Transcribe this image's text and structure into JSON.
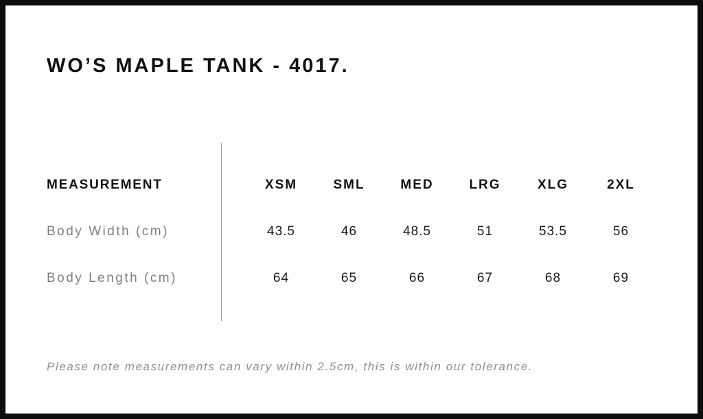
{
  "page": {
    "title": "WO’S MAPLE TANK - 4017.",
    "footnote": "Please note measurements can vary within 2.5cm, this is within our tolerance."
  },
  "size_chart": {
    "label_header": "MEASUREMENT",
    "size_headers": [
      "XSM",
      "SML",
      "MED",
      "LRG",
      "XLG",
      "2XL"
    ],
    "rows": [
      {
        "label": "Body Width (cm)",
        "values": [
          "43.5",
          "46",
          "48.5",
          "51",
          "53.5",
          "56"
        ]
      },
      {
        "label": "Body Length (cm)",
        "values": [
          "64",
          "65",
          "66",
          "67",
          "68",
          "69"
        ]
      }
    ]
  },
  "colors": {
    "background": "#ffffff",
    "frame_border": "#0d0d0d",
    "text_primary": "#111111",
    "text_muted_label": "#7f7f7f",
    "text_note": "#8f8f8f",
    "divider_line": "#a0a0a0"
  }
}
